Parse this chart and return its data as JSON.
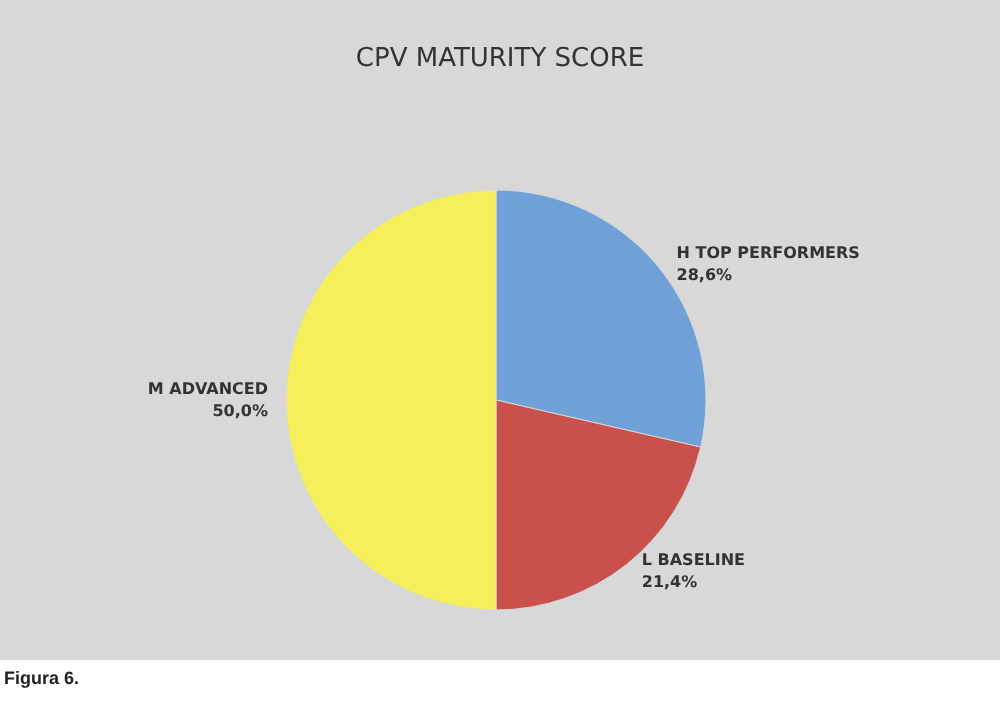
{
  "chart_data": {
    "type": "pie",
    "title": "CPV MATURITY SCORE",
    "categories": [
      "H TOP PERFORMERS",
      "L BASELINE",
      "M ADVANCED"
    ],
    "values": [
      28.6,
      21.4,
      50.0
    ],
    "value_labels": [
      "28,6%",
      "21,4%",
      "50,0%"
    ],
    "colors": [
      "#6fa0d8",
      "#c9504b",
      "#f5ef5a"
    ],
    "annotations": [
      "Figura 6."
    ]
  }
}
